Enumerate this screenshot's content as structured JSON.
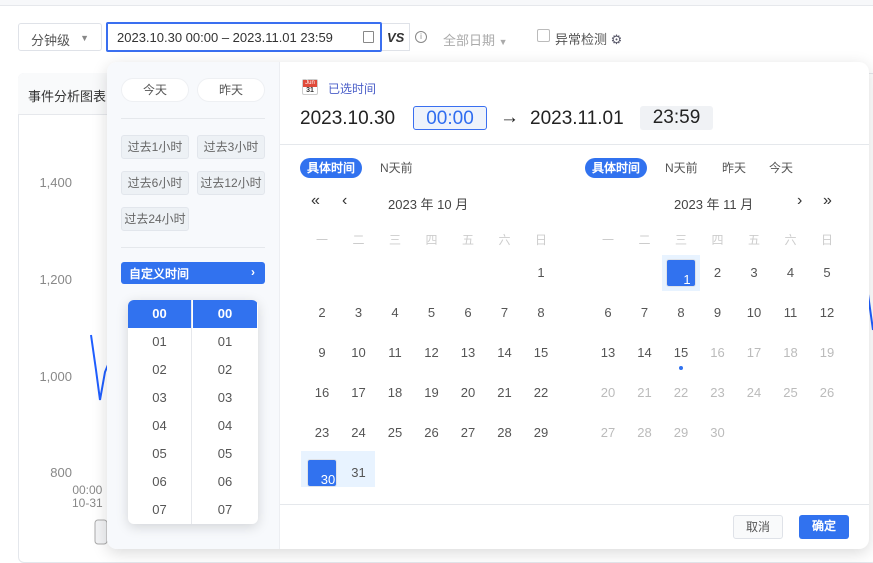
{
  "toolbar": {
    "granularity": "分钟级",
    "date_range": "2023.10.30 00:00 – 2023.11.01 23:59",
    "vs_label": "VS",
    "info_icon": "i",
    "date_filter": "全部日期",
    "anomaly_label": "异常检测"
  },
  "chart": {
    "title": "事件分析图表",
    "y_ticks": [
      "1,400",
      "1,200",
      "1,000",
      "800"
    ],
    "x_tick_time": "00:00",
    "x_tick_date": "10-31",
    "line_color": "#1f5eff"
  },
  "picker": {
    "shortcuts": {
      "today": "今天",
      "yesterday": "昨天",
      "quick": [
        "过去1小时",
        "过去3小时",
        "过去6小时",
        "过去12小时",
        "过去24小时"
      ],
      "custom": "自定义时间"
    },
    "header": {
      "icon_month": "Jun",
      "icon_day": "31",
      "label": "已选时间",
      "start_date": "2023.10.30",
      "start_time": "00:00",
      "arrow": "→",
      "end_date": "2023.11.01",
      "end_time": "23:59"
    },
    "tabs": [
      "具体时间",
      "N天前",
      "昨天",
      "今天"
    ],
    "left_tabs": [
      "具体时间",
      "N天前"
    ],
    "weekdays": [
      "一",
      "二",
      "三",
      "四",
      "五",
      "六",
      "日"
    ],
    "left_month": {
      "title": "2023 年 10 月",
      "rows": [
        [
          "",
          "",
          "",
          "",
          "",
          "",
          "1"
        ],
        [
          "2",
          "3",
          "4",
          "5",
          "6",
          "7",
          "8"
        ],
        [
          "9",
          "10",
          "11",
          "12",
          "13",
          "14",
          "15"
        ],
        [
          "16",
          "17",
          "18",
          "19",
          "20",
          "21",
          "22"
        ],
        [
          "23",
          "24",
          "25",
          "26",
          "27",
          "28",
          "29"
        ],
        [
          "30",
          "31",
          "",
          "",
          "",
          "",
          ""
        ]
      ]
    },
    "right_month": {
      "title": "2023 年 11 月",
      "rows": [
        [
          "",
          "",
          "1",
          "2",
          "3",
          "4",
          "5"
        ],
        [
          "6",
          "7",
          "8",
          "9",
          "10",
          "11",
          "12"
        ],
        [
          "13",
          "14",
          "15",
          "16",
          "17",
          "18",
          "19"
        ],
        [
          "20",
          "21",
          "22",
          "23",
          "24",
          "25",
          "26"
        ],
        [
          "27",
          "28",
          "29",
          "30",
          "",
          "",
          ""
        ]
      ]
    },
    "hours": [
      "00",
      "01",
      "02",
      "03",
      "04",
      "05",
      "06",
      "07"
    ],
    "minutes": [
      "00",
      "01",
      "02",
      "03",
      "04",
      "05",
      "06",
      "07"
    ],
    "cancel": "取消",
    "ok": "确定",
    "accent": "#3172ef"
  }
}
